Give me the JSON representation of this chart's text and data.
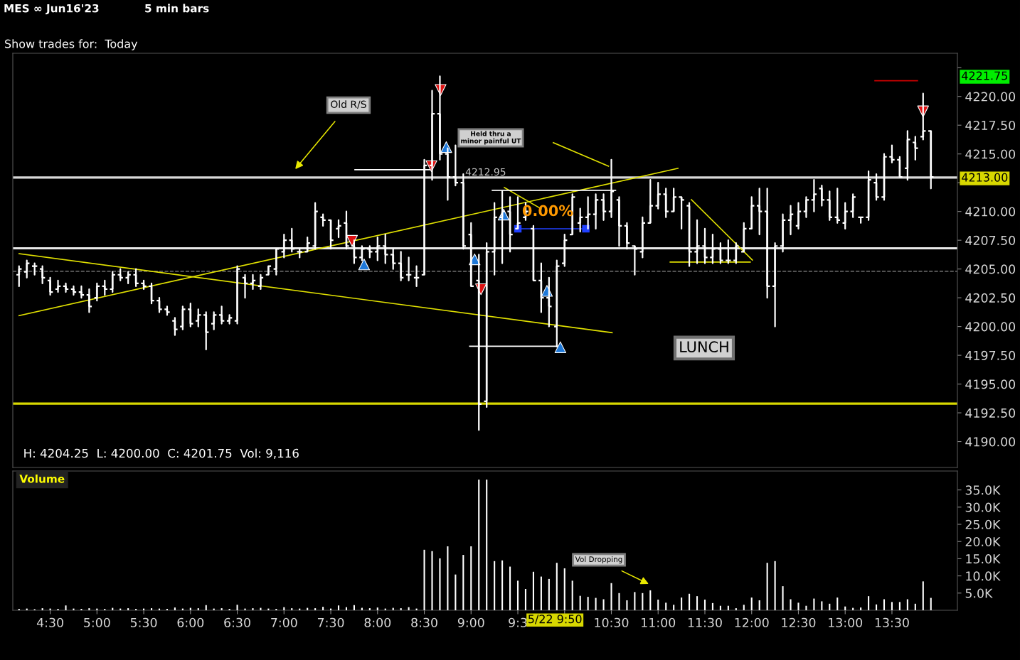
{
  "chart_data": [
    {
      "type": "candlestick",
      "title": "MES ∞ Jun16'23",
      "subtitle": "5 min bars",
      "color": "#ffffff",
      "x": [
        4.1667,
        4.25,
        4.3333,
        4.4167,
        4.5,
        4.5833,
        4.6667,
        4.75,
        4.8333,
        4.9167,
        5,
        5.0833,
        5.1667,
        5.25,
        5.3333,
        5.4167,
        5.5,
        5.5833,
        5.6667,
        5.75,
        5.8333,
        5.9167,
        6,
        6.0833,
        6.1667,
        6.25,
        6.3333,
        6.4167,
        6.5,
        6.5833,
        6.6667,
        6.75,
        6.8333,
        6.9167,
        7,
        7.0833,
        7.1667,
        7.25,
        7.3333,
        7.4167,
        7.5,
        7.5833,
        7.6667,
        7.75,
        7.8333,
        7.9167,
        8,
        8.0833,
        8.1667,
        8.25,
        8.3333,
        8.4167,
        8.5,
        8.5833,
        8.6667,
        8.75,
        8.8333,
        8.9167,
        9,
        9.0833,
        9.1667,
        9.25,
        9.3333,
        9.4167,
        9.5,
        9.5833,
        9.6667,
        9.75,
        9.8333,
        9.9167,
        10,
        10.0833,
        10.1667,
        10.25,
        10.3333,
        10.4167,
        10.5,
        10.5833,
        10.6667,
        10.75,
        10.8333,
        10.9167,
        11,
        11.0833,
        11.1667,
        11.25,
        11.3333,
        11.4167,
        11.5,
        11.5833,
        11.6667,
        11.75,
        11.8333,
        11.9167,
        12,
        12.0833,
        12.1667,
        12.25,
        12.3333,
        12.4167,
        12.5,
        12.5833,
        12.6667,
        12.75,
        12.8333,
        12.9167,
        13,
        13.0833,
        13.1667,
        13.25,
        13.3333,
        13.4167,
        13.5,
        13.5833,
        13.6667,
        13.75,
        13.8333,
        13.9167
      ],
      "ohlc": [
        [
          4204.5,
          4205.25,
          4203.5,
          4205
        ],
        [
          4204.75,
          4205.75,
          4204.25,
          4205.5
        ],
        [
          4205.25,
          4205.5,
          4204.5,
          4205.25
        ],
        [
          4205,
          4205.25,
          4203.75,
          4204.25
        ],
        [
          4204,
          4204.25,
          4202.75,
          4203
        ],
        [
          4203.25,
          4204,
          4203,
          4203.5
        ],
        [
          4203.5,
          4203.75,
          4203,
          4203.25
        ],
        [
          4203.25,
          4203.5,
          4202.75,
          4203
        ],
        [
          4203,
          4203.5,
          4202.5,
          4202.75
        ],
        [
          4202.75,
          4203.25,
          4201.25,
          4201.75
        ],
        [
          4202.5,
          4203.75,
          4202.25,
          4203.5
        ],
        [
          4203.5,
          4204,
          4202.75,
          4203.25
        ],
        [
          4203.25,
          4204.75,
          4203,
          4204.5
        ],
        [
          4204.5,
          4205,
          4204,
          4204.25
        ],
        [
          4204.25,
          4204.75,
          4203.75,
          4204.5
        ],
        [
          4204.5,
          4205,
          4203.5,
          4203.75
        ],
        [
          4203.75,
          4204,
          4203.25,
          4203.5
        ],
        [
          4203.5,
          4203.75,
          4202,
          4202.25
        ],
        [
          4202.25,
          4202.5,
          4201.25,
          4201.5
        ],
        [
          4201.5,
          4201.75,
          4201,
          4201.25
        ],
        [
          4200.5,
          4200.75,
          4199.25,
          4199.75
        ],
        [
          4200,
          4201.75,
          4199.75,
          4201.5
        ],
        [
          4201.5,
          4202,
          4200,
          4200.25
        ],
        [
          4200.5,
          4201.5,
          4200,
          4201
        ],
        [
          4201,
          4201.25,
          4198,
          4199.5
        ],
        [
          4200.25,
          4201.25,
          4199.75,
          4201
        ],
        [
          4201,
          4201.75,
          4200.25,
          4200.5
        ],
        [
          4200.5,
          4201,
          4200.25,
          4200.75
        ],
        [
          4200.5,
          4205.25,
          4200.25,
          4205
        ],
        [
          4204.25,
          4204.5,
          4202.5,
          4203.75
        ],
        [
          4203.75,
          4204.5,
          4203.25,
          4204
        ],
        [
          4203.5,
          4204.5,
          4203.25,
          4204.25
        ],
        [
          4204.5,
          4205.25,
          4204.5,
          4205.25
        ],
        [
          4205,
          4206.75,
          4204.5,
          4206.75
        ],
        [
          4206.5,
          4208,
          4206,
          4207.5
        ],
        [
          4207.5,
          4208.5,
          4206.5,
          4206.75
        ],
        [
          4206.5,
          4206.75,
          4206,
          4206.5
        ],
        [
          4206.5,
          4207.75,
          4206.5,
          4207.25
        ],
        [
          4207,
          4210.75,
          4206.75,
          4210
        ],
        [
          4209.5,
          4209.75,
          4208.75,
          4209.25
        ],
        [
          4209.25,
          4209.25,
          4206.75,
          4207.5
        ],
        [
          4208.5,
          4209.25,
          4207.75,
          4208.75
        ],
        [
          4209,
          4210,
          4206.75,
          4207
        ],
        [
          4207,
          4207.5,
          4205.5,
          4206
        ],
        [
          4206,
          4207,
          4205.75,
          4206.75
        ],
        [
          4206.75,
          4207,
          4206,
          4206.5
        ],
        [
          4206.5,
          4207.75,
          4205.75,
          4207
        ],
        [
          4207,
          4208,
          4205.5,
          4206.25
        ],
        [
          4206.25,
          4206.75,
          4205,
          4205.5
        ],
        [
          4205.5,
          4206.5,
          4204,
          4204.25
        ],
        [
          4204.5,
          4206,
          4204,
          4204.5
        ],
        [
          4204.25,
          4205.25,
          4203.5,
          4204.25
        ],
        [
          4204.5,
          4214.5,
          4204.5,
          4214
        ],
        [
          4214,
          4220.5,
          4212.75,
          4218.5
        ],
        [
          4218.5,
          4221.75,
          4214.5,
          4215
        ],
        [
          4215,
          4215.5,
          4211,
          4213
        ],
        [
          4213,
          4215.75,
          4212.25,
          4212.5
        ],
        [
          4212.5,
          4213.25,
          4206.75,
          4207
        ],
        [
          4208,
          4209,
          4203.5,
          4203.5
        ],
        [
          4204,
          4206.25,
          4191,
          4193.25
        ],
        [
          4193.5,
          4207.25,
          4193,
          4206.5
        ],
        [
          4206.5,
          4210.75,
          4204.5,
          4209.5
        ],
        [
          4209.5,
          4211.75,
          4205.5,
          4210
        ],
        [
          4210,
          4211.25,
          4206.5,
          4208
        ],
        [
          4208.5,
          4211.25,
          4208.5,
          4209
        ],
        [
          4209.5,
          4210.75,
          4209.25,
          4210
        ],
        [
          4208.5,
          4208.75,
          4204,
          4204
        ],
        [
          4204,
          4205.5,
          4201.25,
          4202.5
        ],
        [
          4202.5,
          4204.25,
          4200,
          4201.75
        ],
        [
          4200,
          4205.75,
          4198.25,
          4205.25
        ],
        [
          4205.5,
          4208,
          4205.25,
          4207.5
        ],
        [
          4208,
          4211.5,
          4208,
          4211.25
        ],
        [
          4209,
          4210.25,
          4208.25,
          4209.5
        ],
        [
          4209.5,
          4211.25,
          4208.5,
          4209.75
        ],
        [
          4209.75,
          4211.5,
          4208.5,
          4211
        ],
        [
          4211,
          4211.5,
          4209.25,
          4210
        ],
        [
          4210,
          4214.5,
          4209.5,
          4211.75
        ],
        [
          4211,
          4211.25,
          4207,
          4208.75
        ],
        [
          4208.75,
          4209,
          4206.75,
          4207.25
        ],
        [
          4207,
          4207,
          4204.5,
          4206.75
        ],
        [
          4206.5,
          4209.5,
          4206,
          4209
        ],
        [
          4209,
          4212.75,
          4209,
          4210.5
        ],
        [
          4210.5,
          4212.5,
          4210.25,
          4211.5
        ],
        [
          4211.5,
          4212,
          4209.5,
          4210
        ],
        [
          4210,
          4212,
          4210,
          4211.25
        ],
        [
          4211.25,
          4211.25,
          4208.5,
          4211
        ],
        [
          4210.5,
          4210.75,
          4205.25,
          4206.5
        ],
        [
          4206.5,
          4209.25,
          4205.5,
          4207
        ],
        [
          4207,
          4208.5,
          4205.5,
          4206
        ],
        [
          4206,
          4208,
          4205.5,
          4206.75
        ],
        [
          4206.75,
          4207.25,
          4205.5,
          4205.75
        ],
        [
          4205.75,
          4207.5,
          4205.5,
          4205.75
        ],
        [
          4205.75,
          4207.25,
          4205.5,
          4207
        ],
        [
          4206.5,
          4209,
          4206.5,
          4208.5
        ],
        [
          4208.5,
          4211.25,
          4208.5,
          4210.5
        ],
        [
          4210.5,
          4212,
          4208,
          4210
        ],
        [
          4210,
          4212,
          4202.5,
          4203.5
        ],
        [
          4203.5,
          4207.25,
          4200,
          4207
        ],
        [
          4207,
          4209.75,
          4206.5,
          4209.25
        ],
        [
          4209.25,
          4210.5,
          4208,
          4209.75
        ],
        [
          4208.75,
          4210.75,
          4208.5,
          4210
        ],
        [
          4210,
          4211.25,
          4209.5,
          4211
        ],
        [
          4211,
          4212.75,
          4210,
          4211.5
        ],
        [
          4212,
          4212.25,
          4210.5,
          4211
        ],
        [
          4211,
          4211.75,
          4209.25,
          4209.5
        ],
        [
          4209.5,
          4212,
          4209,
          4209.25
        ],
        [
          4209,
          4210.75,
          4208.5,
          4210
        ],
        [
          4210,
          4211.5,
          4209.5,
          4211.25
        ],
        [
          4209.5,
          4209.5,
          4209,
          4209.5
        ],
        [
          4209.5,
          4213.5,
          4209.25,
          4212.75
        ],
        [
          4212.5,
          4213.25,
          4211,
          4211.25
        ],
        [
          4211.25,
          4215,
          4211,
          4214.75
        ],
        [
          4214.75,
          4215.75,
          4214.25,
          4214.5
        ],
        [
          4214.5,
          4214.75,
          4213,
          4213
        ],
        [
          4213.75,
          4217,
          4212.75,
          4216.25
        ],
        [
          4216,
          4216.5,
          4214.5,
          4215.5
        ],
        [
          4216.5,
          4220.25,
          4216.25,
          4217
        ],
        [
          4217,
          4217,
          4212,
          4213
        ]
      ],
      "series": [
        {
          "type": "line",
          "x": [
            4.167,
            11.212
          ],
          "values": [
            4200.95,
            4213.75
          ],
          "color": "#e0e000"
        },
        {
          "type": "line",
          "x": [
            4.167,
            10.508
          ],
          "values": [
            4206.33,
            4199.47
          ],
          "color": "#e0e000"
        },
        {
          "type": "line",
          "x": [
            11.356,
            12.008
          ],
          "values": [
            4211.03,
            4205.78
          ],
          "color": "#e0e000"
        },
        {
          "type": "line",
          "x": [
            11.129,
            11.985
          ],
          "values": [
            4205.6,
            4205.6
          ],
          "color": "#e0e000"
        },
        {
          "type": "line",
          "x": [
            9.356,
            9.75
          ],
          "values": [
            4212.08,
            4210.23
          ],
          "color": "#e0e000"
        },
        {
          "type": "line",
          "x": [
            9.879,
            10.47
          ],
          "values": [
            4215.98,
            4213.94
          ],
          "color": "#e0e000"
        },
        {
          "type": "line",
          "x": [
            13.318,
            13.773
          ],
          "values": [
            4221.36,
            4221.36
          ],
          "color": "#cc0000"
        },
        {
          "type": "line",
          "x": [
            7.758,
            8.576
          ],
          "values": [
            4213.63,
            4213.63
          ],
          "color": "#ffffff"
        },
        {
          "type": "line",
          "x": [
            9.227,
            10.545
          ],
          "values": [
            4211.84,
            4211.84
          ],
          "color": "#ffffff"
        },
        {
          "type": "line",
          "x": [
            8.985,
            9.939
          ],
          "values": [
            4198.29,
            4198.29
          ],
          "color": "#ffffff"
        },
        {
          "type": "line",
          "x": [
            9.5,
            10.227
          ],
          "values": [
            4208.5,
            4208.5
          ],
          "color": "#2040ff",
          "marker": "square"
        },
        {
          "type": "scatter",
          "marker": "triangle_down",
          "color": "#dd1111",
          "x": [
            7.727,
            8.576,
            8.674,
            9.106,
            13.833
          ],
          "values": [
            4207.45,
            4213.94,
            4220.56,
            4203.24,
            4218.7
          ]
        },
        {
          "type": "scatter",
          "marker": "triangle",
          "color": "#1e78d8",
          "x": [
            7.856,
            8.735,
            9.038,
            9.348,
            9.811,
            9.955
          ],
          "values": [
            4205.4,
            4215.6,
            4205.84,
            4209.73,
            4203.1,
            4198.2
          ]
        }
      ],
      "ref_lines": [
        {
          "axis": "y",
          "value": 4212.95,
          "label": "4212.95",
          "color": "#d8d8d8"
        },
        {
          "axis": "y",
          "value": 4206.8,
          "color": "#e8e8e8"
        },
        {
          "axis": "y",
          "value": 4204.8,
          "color": "#8a8a8a",
          "line_style": "dashed"
        },
        {
          "axis": "y",
          "value": 4193.3,
          "color": "#d8d800"
        }
      ],
      "annotations": [
        "Old R/S",
        "Held thru a\nminor painful UT",
        "0.00%",
        "LUNCH",
        "4221.75",
        "4213.00",
        "H: 4204.25  L: 4200.00  C: 4201.75  Vol: 9,116",
        "Show trades for:  Today"
      ],
      "xlim": [
        4.1,
        14.2
      ],
      "ylim": [
        4187.75,
        4223.75
      ],
      "yticks": [
        {
          "value": 4190,
          "label": "4190.00"
        },
        {
          "value": 4192.5,
          "label": "4192.50"
        },
        {
          "value": 4195,
          "label": "4195.00"
        },
        {
          "value": 4197.5,
          "label": "4197.50"
        },
        {
          "value": 4200,
          "label": "4200.00"
        },
        {
          "value": 4202.5,
          "label": "4202.50"
        },
        {
          "value": 4205,
          "label": "4205.00"
        },
        {
          "value": 4207.5,
          "label": "4207.50"
        },
        {
          "value": 4210,
          "label": "4210.00"
        },
        {
          "value": 4212.5,
          "label": null
        },
        {
          "value": 4215,
          "label": "4215.00"
        },
        {
          "value": 4217.5,
          "label": "4217.50"
        },
        {
          "value": 4220,
          "label": "4220.00"
        },
        {
          "value": 4222.5,
          "label": null
        }
      ],
      "tick_labels": "y"
    },
    {
      "type": "bar",
      "title": "Volume",
      "color": "#ffffff",
      "x": [
        4.1667,
        4.25,
        4.3333,
        4.4167,
        4.5,
        4.5833,
        4.6667,
        4.75,
        4.8333,
        4.9167,
        5,
        5.0833,
        5.1667,
        5.25,
        5.3333,
        5.4167,
        5.5,
        5.5833,
        5.6667,
        5.75,
        5.8333,
        5.9167,
        6,
        6.0833,
        6.1667,
        6.25,
        6.3333,
        6.4167,
        6.5,
        6.5833,
        6.6667,
        6.75,
        6.8333,
        6.9167,
        7,
        7.0833,
        7.1667,
        7.25,
        7.3333,
        7.4167,
        7.5,
        7.5833,
        7.6667,
        7.75,
        7.8333,
        7.9167,
        8,
        8.0833,
        8.1667,
        8.25,
        8.3333,
        8.4167,
        8.5,
        8.5833,
        8.6667,
        8.75,
        8.8333,
        8.9167,
        9,
        9.0833,
        9.1667,
        9.25,
        9.3333,
        9.4167,
        9.5,
        9.5833,
        9.6667,
        9.75,
        9.8333,
        9.9167,
        10,
        10.0833,
        10.1667,
        10.25,
        10.3333,
        10.4167,
        10.5,
        10.5833,
        10.6667,
        10.75,
        10.8333,
        10.9167,
        11,
        11.0833,
        11.1667,
        11.25,
        11.3333,
        11.4167,
        11.5,
        11.5833,
        11.6667,
        11.75,
        11.8333,
        11.9167,
        12,
        12.0833,
        12.1667,
        12.25,
        12.3333,
        12.4167,
        12.5,
        12.5833,
        12.6667,
        12.75,
        12.8333,
        12.9167,
        13,
        13.0833,
        13.1667,
        13.25,
        13.3333,
        13.4167,
        13.5,
        13.5833,
        13.6667,
        13.75,
        13.8333,
        13.9167
      ],
      "values": [
        400,
        500,
        300,
        600,
        500,
        400,
        1400,
        500,
        400,
        600,
        500,
        400,
        700,
        500,
        600,
        400,
        500,
        600,
        500,
        400,
        800,
        500,
        700,
        600,
        1500,
        500,
        600,
        400,
        1600,
        500,
        600,
        700,
        500,
        400,
        900,
        600,
        500,
        700,
        600,
        1000,
        500,
        1400,
        900,
        1500,
        700,
        600,
        800,
        500,
        700,
        600,
        900,
        500,
        17600,
        17200,
        15100,
        18600,
        10400,
        16100,
        18600,
        38000,
        38000,
        14300,
        14500,
        12700,
        8600,
        6200,
        11200,
        9800,
        9116,
        13800,
        12200,
        8600,
        4200,
        3900,
        3600,
        3200,
        7900,
        5000,
        2900,
        5300,
        5000,
        5800,
        3100,
        2200,
        1600,
        3700,
        4800,
        4100,
        3100,
        2100,
        1300,
        1300,
        600,
        1600,
        3700,
        2900,
        13800,
        14300,
        7000,
        3200,
        2200,
        1300,
        3400,
        2600,
        1900,
        3700,
        1100,
        700,
        800,
        4100,
        1700,
        3200,
        2400,
        2400,
        3200,
        1900,
        8400,
        3600
      ],
      "annotations": [
        "Vol Dropping",
        "5/22 9:50"
      ],
      "xlim": [
        4.1,
        14.2
      ],
      "xticks": [
        {
          "value": 4.5,
          "label": "4:30"
        },
        {
          "value": 5,
          "label": "5:00"
        },
        {
          "value": 5.5,
          "label": "5:30"
        },
        {
          "value": 6,
          "label": "6:00"
        },
        {
          "value": 6.5,
          "label": "6:30"
        },
        {
          "value": 7,
          "label": "7:00"
        },
        {
          "value": 7.5,
          "label": "7:30"
        },
        {
          "value": 8,
          "label": "8:00"
        },
        {
          "value": 8.5,
          "label": "8:30"
        },
        {
          "value": 9,
          "label": "9:00"
        },
        {
          "value": 9.5,
          "label": "9:3"
        },
        {
          "value": 10,
          "label": null
        },
        {
          "value": 10.5,
          "label": "10:30"
        },
        {
          "value": 11,
          "label": "11:00"
        },
        {
          "value": 11.5,
          "label": "11:30"
        },
        {
          "value": 12,
          "label": "12:00"
        },
        {
          "value": 12.5,
          "label": "12:30"
        },
        {
          "value": 13,
          "label": "13:00"
        },
        {
          "value": 13.5,
          "label": "13:30"
        }
      ],
      "ylim": [
        0,
        40500
      ],
      "yticks": [
        {
          "value": 5000,
          "label": "5.0K"
        },
        {
          "value": 10000,
          "label": "10.0K"
        },
        {
          "value": 15000,
          "label": "15.0K"
        },
        {
          "value": 20000,
          "label": "20.0K"
        },
        {
          "value": 25000,
          "label": "25.0K"
        },
        {
          "value": 30000,
          "label": "30.0K"
        },
        {
          "value": 35000,
          "label": "35.0K"
        }
      ]
    }
  ]
}
